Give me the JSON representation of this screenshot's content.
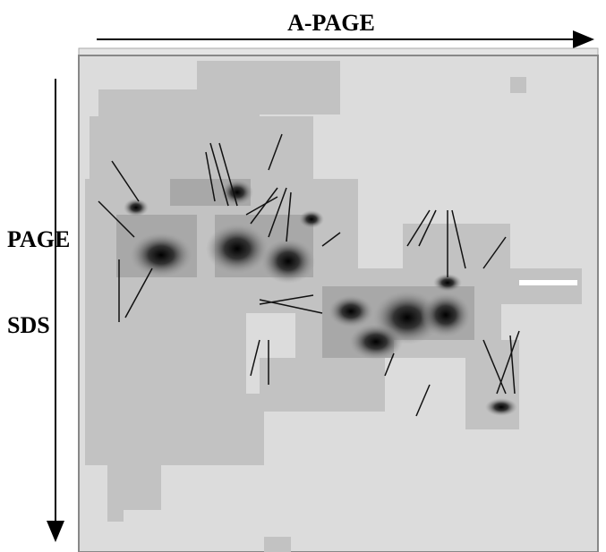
{
  "axes": {
    "top_label": "A-PAGE",
    "left_label_1": "PAGE",
    "left_label_2": "SDS"
  }
}
